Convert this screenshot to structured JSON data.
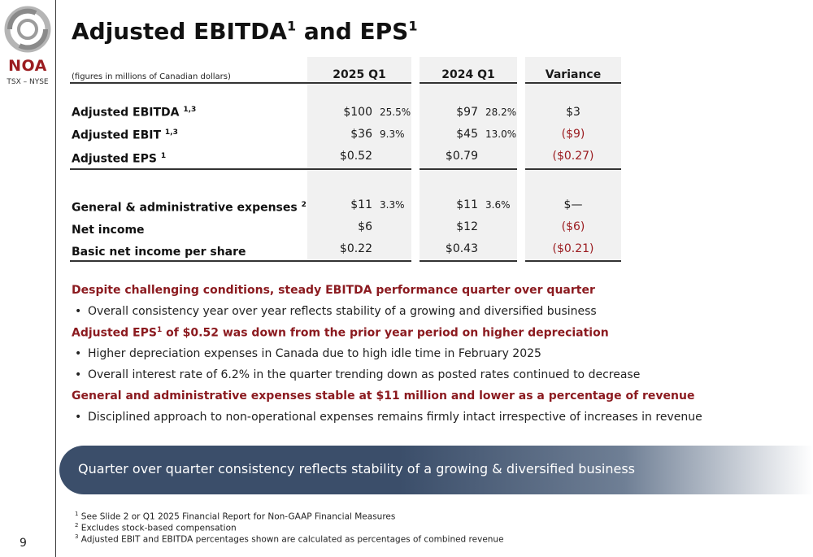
{
  "logo": {
    "brand": "NOA",
    "subtitle": "TSX – NYSE"
  },
  "page_number": "9",
  "title": {
    "main": "Adjusted EBITDA",
    "sup1": "1",
    "and": " and EPS",
    "sup2": "1"
  },
  "table": {
    "subheader": "(figures in millions of Canadian dollars)",
    "columns": [
      "2025 Q1",
      "2024 Q1",
      "Variance"
    ],
    "rows": [
      {
        "label": "Adjusted EBITDA ",
        "sup": "1,3",
        "q1_2025": "$100",
        "q1_2025_pct": "25.5%",
        "q1_2024": "$97",
        "q1_2024_pct": "28.2%",
        "variance": "$3",
        "neg": false
      },
      {
        "label": "Adjusted EBIT ",
        "sup": "1,3",
        "q1_2025": "$36",
        "q1_2025_pct": "9.3%",
        "q1_2024": "$45",
        "q1_2024_pct": "13.0%",
        "variance": "($9)",
        "neg": true
      },
      {
        "label": "Adjusted EPS ",
        "sup": "1",
        "q1_2025": "$0.52",
        "q1_2025_pct": "",
        "q1_2024": "$0.79",
        "q1_2024_pct": "",
        "variance": "($0.27)",
        "neg": true
      },
      {
        "label": "General & administrative expenses ",
        "sup": "2",
        "q1_2025": "$11",
        "q1_2025_pct": "3.3%",
        "q1_2024": "$11",
        "q1_2024_pct": "3.6%",
        "variance": "$—",
        "neg": false
      },
      {
        "label": "Net income",
        "sup": "",
        "q1_2025": "$6",
        "q1_2025_pct": "",
        "q1_2024": "$12",
        "q1_2024_pct": "",
        "variance": "($6)",
        "neg": true
      },
      {
        "label": "Basic net income per share",
        "sup": "",
        "q1_2025": "$0.22",
        "q1_2025_pct": "",
        "q1_2024": "$0.43",
        "q1_2024_pct": "",
        "variance": "($0.21)",
        "neg": true
      }
    ]
  },
  "commentary": {
    "h1": "Despite challenging conditions, steady EBITDA performance quarter over quarter",
    "b1": "Overall consistency year over year reflects stability of a growing and diversified business",
    "h2_a": "Adjusted EPS",
    "h2_sup": "1",
    "h2_b": " of $0.52 was down from the prior year period on higher depreciation",
    "b2": "Higher depreciation expenses in Canada due to high idle time in February 2025",
    "b3": "Overall interest rate of 6.2% in the quarter trending down as posted rates continued to decrease",
    "h3": "General and administrative expenses stable at $11 million and lower as a percentage of revenue",
    "b4": "Disciplined approach to non-operational expenses remains firmly intact irrespective of increases in revenue",
    "bullet_char": "•"
  },
  "banner": "Quarter over quarter consistency reflects stability of a growing & diversified business",
  "footnotes": [
    {
      "num": "1",
      "text": " See Slide 2 or Q1 2025 Financial Report for Non-GAAP Financial Measures"
    },
    {
      "num": "2",
      "text": " Excludes stock-based compensation"
    },
    {
      "num": "3",
      "text": " Adjusted EBIT and EBITDA percentages shown are calculated as percentages of combined revenue"
    }
  ],
  "colors": {
    "accent_red": "#8b1a1f",
    "banner_blue": "#3b4e6a"
  }
}
